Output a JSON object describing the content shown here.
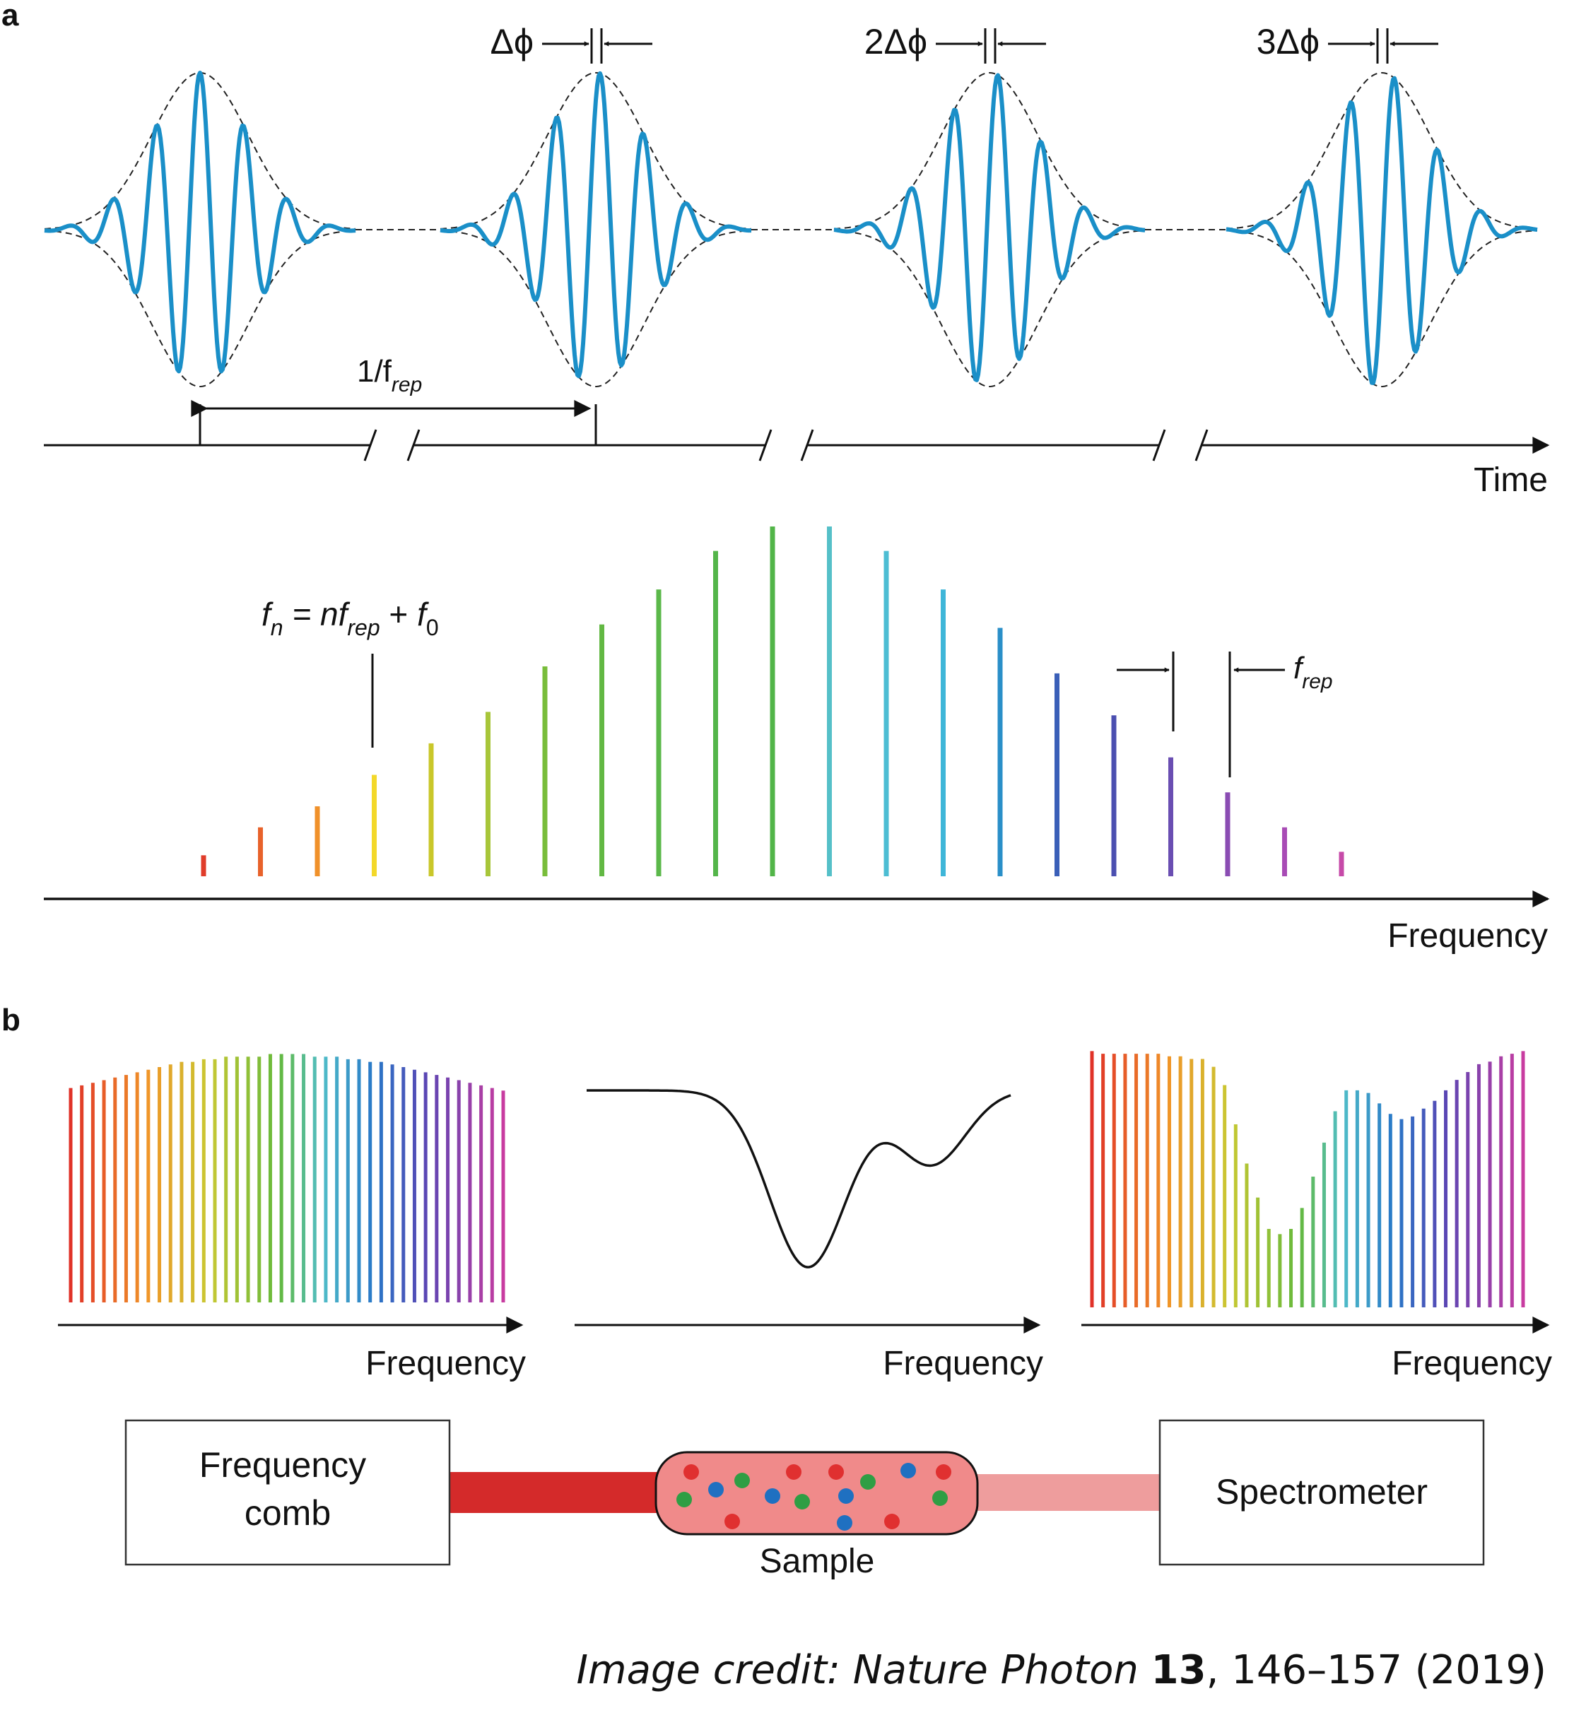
{
  "panel_a": {
    "label": "a",
    "time_axis_label": "Time",
    "freq_axis_label": "Frequency",
    "pulse_period_label": "1/f",
    "pulse_period_sub": "rep",
    "phase_labels": [
      "Δϕ",
      "2Δϕ",
      "3Δϕ"
    ],
    "comb_formula": {
      "f": "f",
      "f_sub": "n",
      "eq": " = n",
      "f2": "f",
      "f2_sub": "rep",
      "plus": " + ",
      "f3": "f",
      "f3_sub": "0"
    },
    "frep_label": "f",
    "frep_sub": "rep",
    "comb_line_heights": [
      0.06,
      0.14,
      0.2,
      0.29,
      0.38,
      0.47,
      0.6,
      0.72,
      0.82,
      0.93,
      1.0,
      1.0,
      0.93,
      0.82,
      0.71,
      0.58,
      0.46,
      0.34,
      0.24,
      0.14,
      0.07
    ],
    "comb_line_colors": [
      "#e03c2a",
      "#e8622a",
      "#f0912a",
      "#f3d82a",
      "#c9c72a",
      "#a8c63a",
      "#78bd3a",
      "#62b843",
      "#5bb84a",
      "#54b54a",
      "#52b548",
      "#55c0c8",
      "#4dbdd3",
      "#3fb6d8",
      "#2a8fc8",
      "#3a5fb8",
      "#4b4fb0",
      "#6a4eb2",
      "#8a4cb3",
      "#a84bb5",
      "#c64aa8"
    ],
    "pulses": [
      {
        "envelope_amplitude": 1.0,
        "carrier_phase_shift_rad": 0.0
      },
      {
        "envelope_amplitude": 1.0,
        "carrier_phase_shift_rad": 0.6
      },
      {
        "envelope_amplitude": 1.0,
        "carrier_phase_shift_rad": 1.2
      },
      {
        "envelope_amplitude": 1.0,
        "carrier_phase_shift_rad": 1.8
      }
    ],
    "pulse_color": "#1a8fc8"
  },
  "panel_b": {
    "label": "b",
    "freq_axis_label": "Frequency",
    "input_spectrum": [
      0.82,
      0.83,
      0.84,
      0.85,
      0.86,
      0.87,
      0.88,
      0.89,
      0.9,
      0.91,
      0.92,
      0.92,
      0.93,
      0.93,
      0.94,
      0.94,
      0.94,
      0.94,
      0.95,
      0.95,
      0.95,
      0.95,
      0.94,
      0.94,
      0.94,
      0.93,
      0.93,
      0.92,
      0.92,
      0.91,
      0.9,
      0.89,
      0.88,
      0.87,
      0.86,
      0.85,
      0.84,
      0.83,
      0.82,
      0.81
    ],
    "output_spectrum": [
      0.98,
      0.97,
      0.97,
      0.97,
      0.97,
      0.97,
      0.97,
      0.96,
      0.96,
      0.95,
      0.95,
      0.92,
      0.85,
      0.7,
      0.55,
      0.42,
      0.3,
      0.28,
      0.3,
      0.38,
      0.5,
      0.63,
      0.75,
      0.83,
      0.83,
      0.82,
      0.78,
      0.74,
      0.72,
      0.73,
      0.76,
      0.79,
      0.83,
      0.87,
      0.9,
      0.93,
      0.94,
      0.96,
      0.97,
      0.98
    ],
    "absorption_dips": [
      {
        "center": 0.52,
        "depth": 1.0,
        "width": 0.09
      },
      {
        "center": 0.81,
        "depth": 0.42,
        "width": 0.08
      }
    ],
    "setup": {
      "source": {
        "line1": "Frequency",
        "line2": "comb"
      },
      "sample": "Sample",
      "detector": "Spectrometer"
    },
    "beam_color": "#d42a2a",
    "molecule_colors": [
      "#e03030",
      "#2f9e44",
      "#1f70c1"
    ]
  },
  "credit": {
    "prefix": "Image credit: Nature Photon ",
    "volume": "13",
    "suffix": ", 146–157 (2019)"
  }
}
